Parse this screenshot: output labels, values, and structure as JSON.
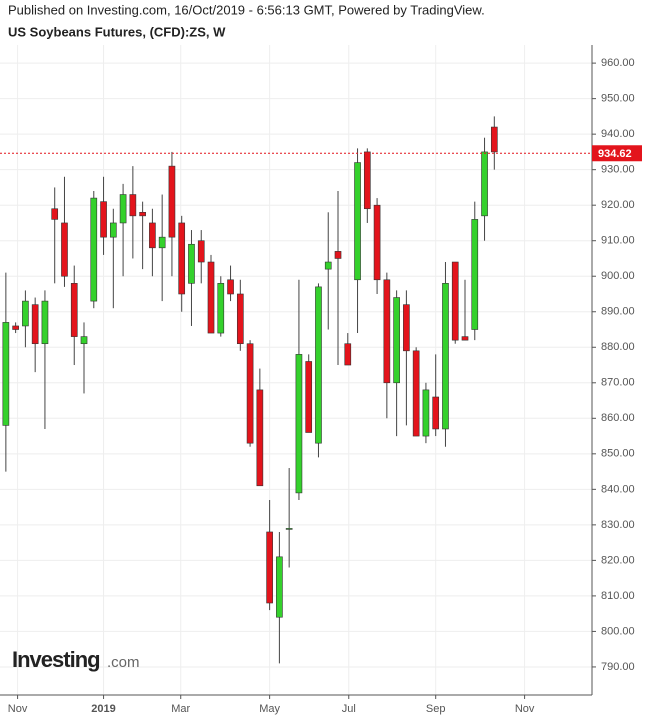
{
  "header": {
    "published": "Published on Investing.com, 16/Oct/2019 - 6:56:13 GMT, Powered by TradingView."
  },
  "logo": {
    "brand": "Investing",
    "suffix": ".com"
  },
  "chart_data": {
    "type": "candlestick",
    "title": "US Soybeans Futures, (CFD):ZS, W",
    "xlim": [
      -0.6,
      60
    ],
    "xticks": [
      {
        "value": 1.2,
        "label": "Nov"
      },
      {
        "value": 10,
        "label": "2019"
      },
      {
        "value": 17.9,
        "label": "Mar"
      },
      {
        "value": 27,
        "label": "May"
      },
      {
        "value": 35.1,
        "label": "Jul"
      },
      {
        "value": 44,
        "label": "Sep"
      },
      {
        "value": 53.1,
        "label": "Nov"
      }
    ],
    "ylim": [
      782.1,
      965.1
    ],
    "yticks": [
      {
        "value": 790,
        "label": "790.00"
      },
      {
        "value": 800,
        "label": "800.00"
      },
      {
        "value": 810,
        "label": "810.00"
      },
      {
        "value": 820,
        "label": "820.00"
      },
      {
        "value": 830,
        "label": "830.00"
      },
      {
        "value": 840,
        "label": "840.00"
      },
      {
        "value": 850,
        "label": "850.00"
      },
      {
        "value": 860,
        "label": "860.00"
      },
      {
        "value": 870,
        "label": "870.00"
      },
      {
        "value": 880,
        "label": "880.00"
      },
      {
        "value": 890,
        "label": "890.00"
      },
      {
        "value": 900,
        "label": "900.00"
      },
      {
        "value": 910,
        "label": "910.00"
      },
      {
        "value": 920,
        "label": "920.00"
      },
      {
        "value": 930,
        "label": "930.00"
      },
      {
        "value": 940,
        "label": "940.00"
      },
      {
        "value": 950,
        "label": "950.00"
      },
      {
        "value": 960,
        "label": "960.00"
      }
    ],
    "grid": true,
    "up_color": "#34d12c",
    "down_color": "#e3141c",
    "last_price": 934.62,
    "last_price_color": "#e3141c",
    "open": [
      858,
      886,
      886,
      892,
      881,
      919,
      915,
      898,
      881,
      893,
      921,
      911,
      915,
      923,
      918,
      915,
      908,
      931,
      915,
      898,
      910,
      904,
      884,
      899,
      895,
      881,
      868,
      828,
      804,
      829,
      839,
      876,
      853,
      902,
      907,
      881,
      899,
      935,
      920,
      899,
      870,
      892,
      879,
      855,
      866,
      857,
      904,
      883,
      885,
      917,
      942
    ],
    "high": [
      901,
      887,
      896,
      894,
      896,
      925,
      928,
      903,
      887,
      924,
      928,
      919,
      926,
      931,
      921,
      919,
      923,
      935,
      917,
      913,
      913,
      906,
      900,
      903,
      899,
      882,
      874,
      837,
      828,
      846,
      899,
      878,
      898,
      918,
      924,
      884,
      936,
      936,
      922,
      901,
      896,
      896,
      880,
      870,
      878,
      904,
      904,
      899,
      921,
      939,
      945
    ],
    "low": [
      845,
      884,
      880,
      873,
      857,
      898,
      897,
      875,
      867,
      891,
      906,
      891,
      900,
      905,
      902,
      900,
      893,
      900,
      890,
      886,
      898,
      884,
      883,
      893,
      879,
      852,
      841,
      806,
      791,
      818,
      837,
      856,
      849,
      885,
      875,
      875,
      884,
      915,
      895,
      860,
      855,
      858,
      855,
      853,
      855,
      852,
      881,
      882,
      882,
      910,
      930
    ],
    "close": [
      887,
      885,
      893,
      881,
      893,
      916,
      900,
      883,
      883,
      922,
      911,
      915,
      923,
      917,
      917,
      908,
      911,
      911,
      895,
      909,
      904,
      884,
      898,
      895,
      881,
      853,
      841,
      808,
      821,
      829,
      878,
      856,
      897,
      904,
      905,
      875,
      932,
      919,
      899,
      870,
      894,
      879,
      855,
      868,
      857,
      898,
      882,
      882,
      916,
      935,
      935
    ]
  }
}
